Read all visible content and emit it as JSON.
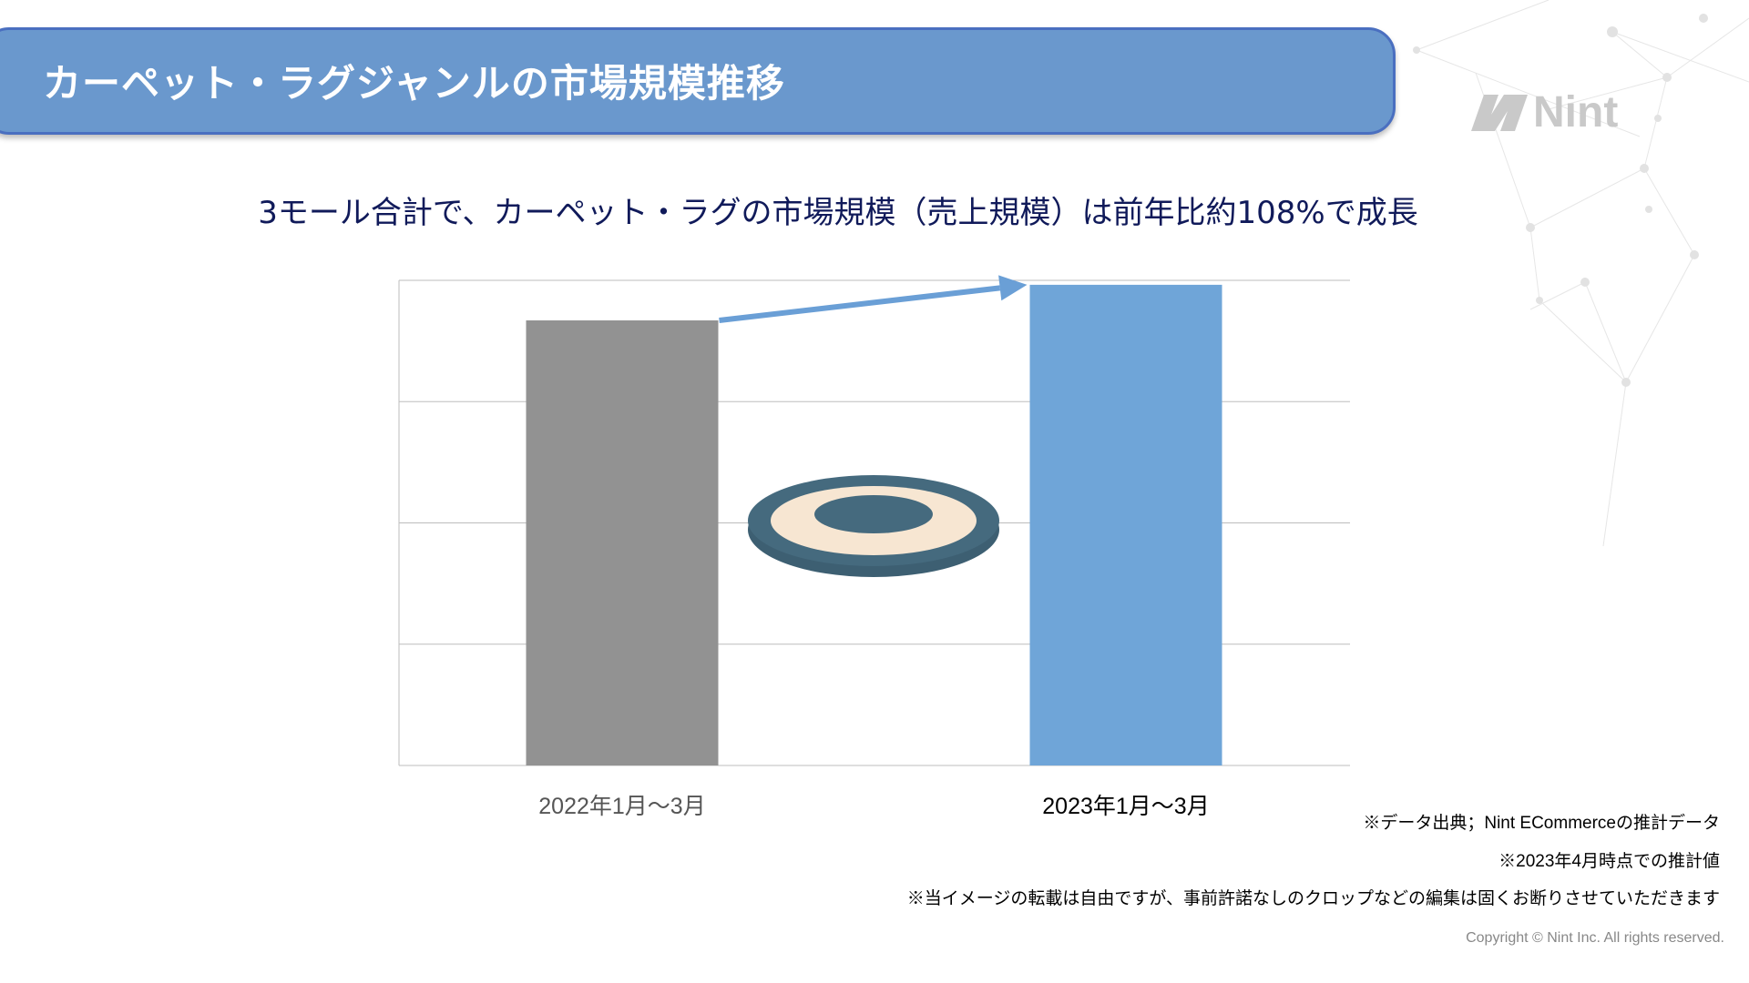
{
  "header": {
    "title": "カーペット・ラグジャンルの市場規模推移"
  },
  "logo": {
    "text": "Nint"
  },
  "subtitle": "3モール合計で、カーペット・ラグの市場規模（売上規模）は前年比約108%で成長",
  "chart_data": {
    "type": "bar",
    "categories": [
      "2022年1月～3月",
      "2023年1月～3月"
    ],
    "values": [
      100,
      108
    ],
    "value_unit": "relative index (2022 = 100)",
    "colors": [
      "#929292",
      "#6fa5d8"
    ],
    "ylim": [
      0,
      109
    ],
    "grid": true,
    "gridlines": 4,
    "annotation": "growth arrow from 2022 bar to 2023 bar",
    "arrow_color": "#6a9fd6"
  },
  "notes": [
    "※データ出典；Nint ECommerceの推計データ",
    "※2023年4月時点での推計値",
    "※当イメージの転載は自由ですが、事前許諾なしのクロップなどの編集は固くお断りさせていただきます"
  ],
  "copyright": "Copyright © Nint Inc. All rights reserved."
}
